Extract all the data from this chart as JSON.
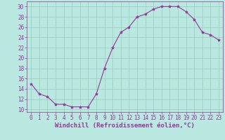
{
  "x": [
    0,
    1,
    2,
    3,
    4,
    5,
    6,
    7,
    8,
    9,
    10,
    11,
    12,
    13,
    14,
    15,
    16,
    17,
    18,
    19,
    20,
    21,
    22,
    23
  ],
  "y": [
    15,
    13,
    12.5,
    11,
    11,
    10.5,
    10.5,
    10.5,
    13,
    18,
    22,
    25,
    26,
    28,
    28.5,
    29.5,
    30,
    30,
    30,
    29,
    27.5,
    25,
    24.5,
    23.5
  ],
  "line_color": "#993399",
  "marker": "*",
  "marker_size": 3,
  "background_color": "#b8e8e0",
  "grid_color": "#99ccbb",
  "xlabel": "Windchill (Refroidissement éolien,°C)",
  "xlabel_color": "#993399",
  "xlabel_fontsize": 6.5,
  "tick_color": "#993399",
  "tick_fontsize": 5.5,
  "ylim": [
    9.5,
    31
  ],
  "xlim": [
    -0.5,
    23.5
  ],
  "yticks": [
    10,
    12,
    14,
    16,
    18,
    20,
    22,
    24,
    26,
    28,
    30
  ],
  "xticks": [
    0,
    1,
    2,
    3,
    4,
    5,
    6,
    7,
    8,
    9,
    10,
    11,
    12,
    13,
    14,
    15,
    16,
    17,
    18,
    19,
    20,
    21,
    22,
    23
  ]
}
